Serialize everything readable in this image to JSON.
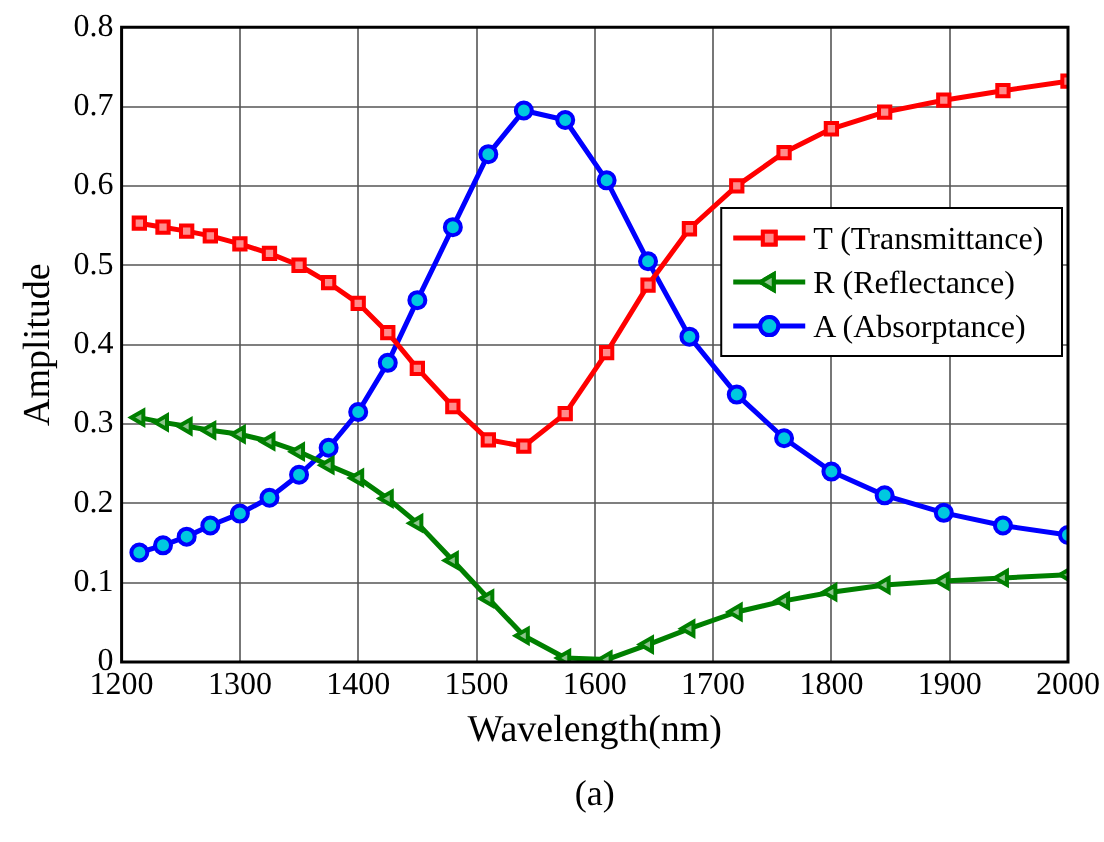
{
  "chart_data": {
    "type": "line",
    "xlabel": "Wavelength(nm)",
    "ylabel": "Amplitude",
    "x": [
      1215,
      1235,
      1255,
      1275,
      1300,
      1325,
      1350,
      1375,
      1400,
      1425,
      1450,
      1480,
      1510,
      1540,
      1575,
      1610,
      1645,
      1680,
      1720,
      1760,
      1800,
      1845,
      1895,
      1945,
      2000
    ],
    "series": [
      {
        "name": "T (Transmittance)",
        "color": "#ff0000",
        "marker": "square",
        "values": [
          0.553,
          0.548,
          0.543,
          0.537,
          0.527,
          0.515,
          0.5,
          0.478,
          0.452,
          0.415,
          0.37,
          0.322,
          0.28,
          0.272,
          0.313,
          0.39,
          0.475,
          0.546,
          0.6,
          0.642,
          0.672,
          0.693,
          0.708,
          0.72,
          0.732
        ]
      },
      {
        "name": "R (Reflectance)",
        "color": "#007f00",
        "marker": "triangle",
        "values": [
          0.308,
          0.302,
          0.297,
          0.292,
          0.287,
          0.278,
          0.265,
          0.248,
          0.232,
          0.206,
          0.175,
          0.128,
          0.08,
          0.033,
          0.005,
          0.003,
          0.022,
          0.042,
          0.063,
          0.077,
          0.088,
          0.097,
          0.102,
          0.106,
          0.11
        ]
      },
      {
        "name": "A (Absorptance)",
        "color": "#0000ff",
        "marker": "circle",
        "values": [
          0.138,
          0.147,
          0.158,
          0.172,
          0.187,
          0.207,
          0.236,
          0.27,
          0.315,
          0.377,
          0.456,
          0.548,
          0.64,
          0.695,
          0.683,
          0.607,
          0.505,
          0.41,
          0.337,
          0.282,
          0.24,
          0.21,
          0.188,
          0.172,
          0.16
        ]
      }
    ],
    "xlim": [
      1200,
      2000
    ],
    "xticks": [
      1200,
      1300,
      1400,
      1500,
      1600,
      1700,
      1800,
      1900,
      2000
    ],
    "ylim": [
      0,
      0.8
    ],
    "yticks": [
      0,
      0.1,
      0.2,
      0.3,
      0.4,
      0.5,
      0.6,
      0.7,
      0.8
    ],
    "grid": true,
    "legend": "right",
    "line_style": "solid",
    "annotations": [
      "(a)"
    ]
  }
}
